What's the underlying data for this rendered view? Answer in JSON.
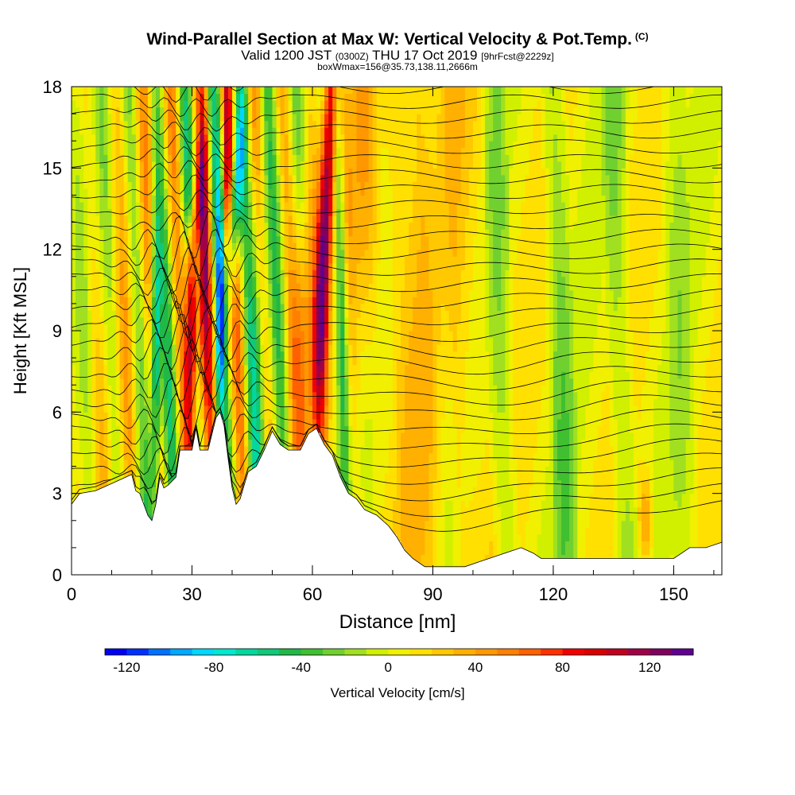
{
  "title": "Wind-Parallel Section at Max W: Vertical Velocity & Pot.Temp.",
  "title_mark": "(C)",
  "subtitle": {
    "valid": "Valid 1200 JST",
    "utc": "(0300Z)",
    "date": "THU 17 Oct 2019",
    "forecast": "[9hrFcst@2229z]"
  },
  "box_info": "boxWmax=156@35.73,138.11,2666m",
  "colorbar": {
    "label": "Vertical Velocity [cm/s]",
    "min": -130,
    "max": 140,
    "ticks": [
      "-120",
      "-80",
      "-40",
      "0",
      "40",
      "80",
      "120"
    ],
    "tick_values": [
      -120,
      -80,
      -40,
      0,
      40,
      80,
      120
    ],
    "colors": [
      "#0000f0",
      "#0030ff",
      "#0070ff",
      "#00a8ff",
      "#00d8ff",
      "#00e8d0",
      "#00d8a0",
      "#10c878",
      "#20b848",
      "#40c030",
      "#70d030",
      "#a0e020",
      "#d0f000",
      "#f0f000",
      "#ffe000",
      "#ffc800",
      "#ffb000",
      "#ff9800",
      "#ff8000",
      "#ff6000",
      "#ff3000",
      "#f00000",
      "#d80000",
      "#c00020",
      "#a00048",
      "#800060",
      "#600090"
    ]
  },
  "chart_data": {
    "type": "heatmap",
    "title": "Wind-Parallel Section at Max W: Vertical Velocity & Pot.Temp.",
    "xlabel": "Distance [nm]",
    "ylabel": "Height [Kft MSL]",
    "xlim": [
      0,
      162
    ],
    "ylim": [
      0,
      18
    ],
    "xticks": [
      0,
      30,
      60,
      90,
      120,
      150
    ],
    "yticks": [
      0,
      3,
      6,
      9,
      12,
      15,
      18
    ],
    "shaded_field": "Vertical Velocity [cm/s]",
    "contour_field": "Pot.Temp. (C)",
    "terrain_profile": [
      [
        0,
        2.6
      ],
      [
        2,
        3.0
      ],
      [
        6,
        3.1
      ],
      [
        12,
        3.5
      ],
      [
        15,
        3.7
      ],
      [
        16,
        3.1
      ],
      [
        17,
        3.0
      ],
      [
        18,
        2.6
      ],
      [
        19,
        2.2
      ],
      [
        20,
        2.0
      ],
      [
        21,
        2.6
      ],
      [
        22,
        3.6
      ],
      [
        23,
        3.2
      ],
      [
        24,
        3.3
      ],
      [
        26,
        3.6
      ],
      [
        27,
        4.6
      ],
      [
        30,
        4.6
      ],
      [
        31,
        5.4
      ],
      [
        32,
        4.6
      ],
      [
        34,
        4.6
      ],
      [
        35,
        5.2
      ],
      [
        36,
        5.8
      ],
      [
        37,
        6.0
      ],
      [
        38,
        5.5
      ],
      [
        39,
        4.3
      ],
      [
        40,
        3.2
      ],
      [
        41,
        2.6
      ],
      [
        42,
        2.8
      ],
      [
        43,
        3.3
      ],
      [
        44,
        3.8
      ],
      [
        46,
        4.0
      ],
      [
        48,
        4.6
      ],
      [
        50,
        5.3
      ],
      [
        52,
        4.8
      ],
      [
        54,
        4.6
      ],
      [
        57,
        4.6
      ],
      [
        59,
        5.2
      ],
      [
        61,
        5.4
      ],
      [
        63,
        4.8
      ],
      [
        65,
        4.4
      ],
      [
        67,
        3.6
      ],
      [
        69,
        3.0
      ],
      [
        71,
        2.8
      ],
      [
        73,
        2.4
      ],
      [
        76,
        2.2
      ],
      [
        79,
        1.8
      ],
      [
        81,
        1.4
      ],
      [
        83,
        0.9
      ],
      [
        85,
        0.6
      ],
      [
        88,
        0.3
      ],
      [
        95,
        0.3
      ],
      [
        98,
        0.3
      ],
      [
        102,
        0.5
      ],
      [
        106,
        0.7
      ],
      [
        112,
        1.0
      ],
      [
        115,
        0.8
      ],
      [
        117,
        0.6
      ],
      [
        120,
        0.6
      ],
      [
        128,
        0.6
      ],
      [
        136,
        0.6
      ],
      [
        144,
        0.6
      ],
      [
        150,
        0.6
      ],
      [
        154,
        1.0
      ],
      [
        158,
        1.0
      ],
      [
        162,
        1.2
      ]
    ],
    "max_updrafts_nm": [
      30,
      33,
      42,
      62,
      66
    ],
    "max_downdrafts_nm": [
      21,
      37,
      41,
      67
    ],
    "max_w_cm_s": 156
  }
}
